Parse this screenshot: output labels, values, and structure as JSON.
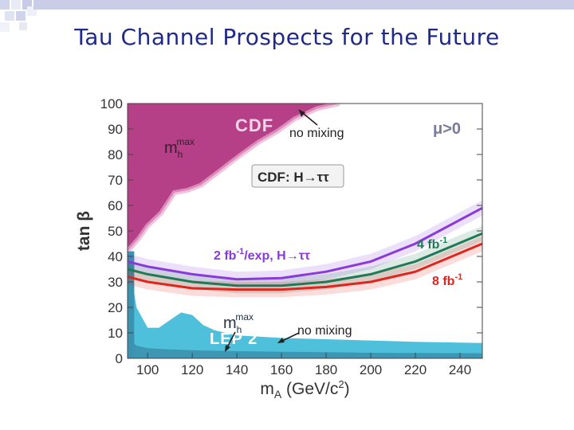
{
  "slide": {
    "title": "Tau Channel Prospects for the Future"
  },
  "colors": {
    "cdf": "#b0307e",
    "lep": "#4fc0dc",
    "lep_dark": "#3a8fab",
    "purple": "#8a3ad8",
    "green": "#1f7a55",
    "red": "#e0261c",
    "arrow": "#222222"
  },
  "chart_data": {
    "type": "line",
    "xlabel_main": "m",
    "xlabel_sub": "A",
    "xlabel_rest": " (GeV/c",
    "xlabel_sup": "2",
    "xlabel_close": ")",
    "ylabel": "tan β",
    "xlim": [
      91,
      250
    ],
    "ylim": [
      0,
      100
    ],
    "xticks": [
      100,
      120,
      140,
      160,
      180,
      200,
      220,
      240
    ],
    "yticks": [
      0,
      10,
      20,
      30,
      40,
      50,
      60,
      70,
      80,
      90,
      100
    ],
    "regions": {
      "cdf": {
        "label": "CDF",
        "boundary_x": [
          91,
          96,
          100,
          106,
          112,
          118,
          124,
          130,
          136,
          142,
          150,
          158,
          166,
          176,
          186
        ],
        "boundary_y": [
          42,
          47,
          52,
          57,
          65,
          66,
          68,
          72,
          76,
          80,
          85,
          89,
          94,
          98,
          100
        ]
      },
      "lep_mhmax": {
        "label": "LEP 2",
        "x": [
          91,
          95,
          100,
          105,
          110,
          115,
          120,
          125,
          130,
          135,
          140,
          150,
          160,
          180,
          200,
          220,
          250
        ],
        "y": [
          42,
          20,
          12,
          12,
          15,
          18,
          17,
          13,
          11,
          10,
          9,
          8.5,
          8,
          7.5,
          7,
          6.5,
          6
        ]
      },
      "lep_nomix": {
        "x": [
          91,
          95,
          100,
          110,
          120,
          130,
          140,
          160,
          180,
          200,
          220,
          250
        ],
        "y": [
          8,
          5,
          4,
          3.5,
          3.2,
          3,
          2.8,
          2.6,
          2.4,
          2.2,
          2.1,
          2
        ]
      }
    },
    "series": [
      {
        "name": "2 fb-1/exp, H→ττ",
        "color": "#8a3ad8",
        "x": [
          91,
          100,
          120,
          140,
          160,
          180,
          200,
          220,
          250
        ],
        "y": [
          38,
          36,
          33,
          31,
          31.5,
          34,
          38,
          45,
          59
        ]
      },
      {
        "name": "4 fb-1",
        "color": "#1f7a55",
        "x": [
          91,
          100,
          120,
          140,
          160,
          180,
          200,
          220,
          250
        ],
        "y": [
          35,
          33,
          30,
          28.5,
          28.5,
          30,
          33,
          38,
          49
        ]
      },
      {
        "name": "8 fb-1",
        "color": "#e0261c",
        "x": [
          91,
          100,
          120,
          140,
          160,
          180,
          200,
          220,
          250
        ],
        "y": [
          32,
          30,
          27.5,
          27,
          27,
          28,
          30,
          34,
          45
        ]
      }
    ],
    "annotations": {
      "mu": "μ>0",
      "cdf_box": "CDF: H→ττ",
      "no_mixing_top": "no mixing",
      "no_mixing_bottom": "no mixing",
      "mh_top": "m",
      "mh_top_sub": "h",
      "mh_top_sup": "max",
      "mh_bot": "m",
      "mh_bot_sub": "h",
      "mh_bot_sup": "max",
      "purple_label_a": "2 fb",
      "purple_label_sup": "-1",
      "purple_label_b": "/exp, H→ττ",
      "green_label_a": "4 fb",
      "green_label_sup": "-1",
      "red_label_a": "8 fb",
      "red_label_sup": "-1"
    }
  }
}
